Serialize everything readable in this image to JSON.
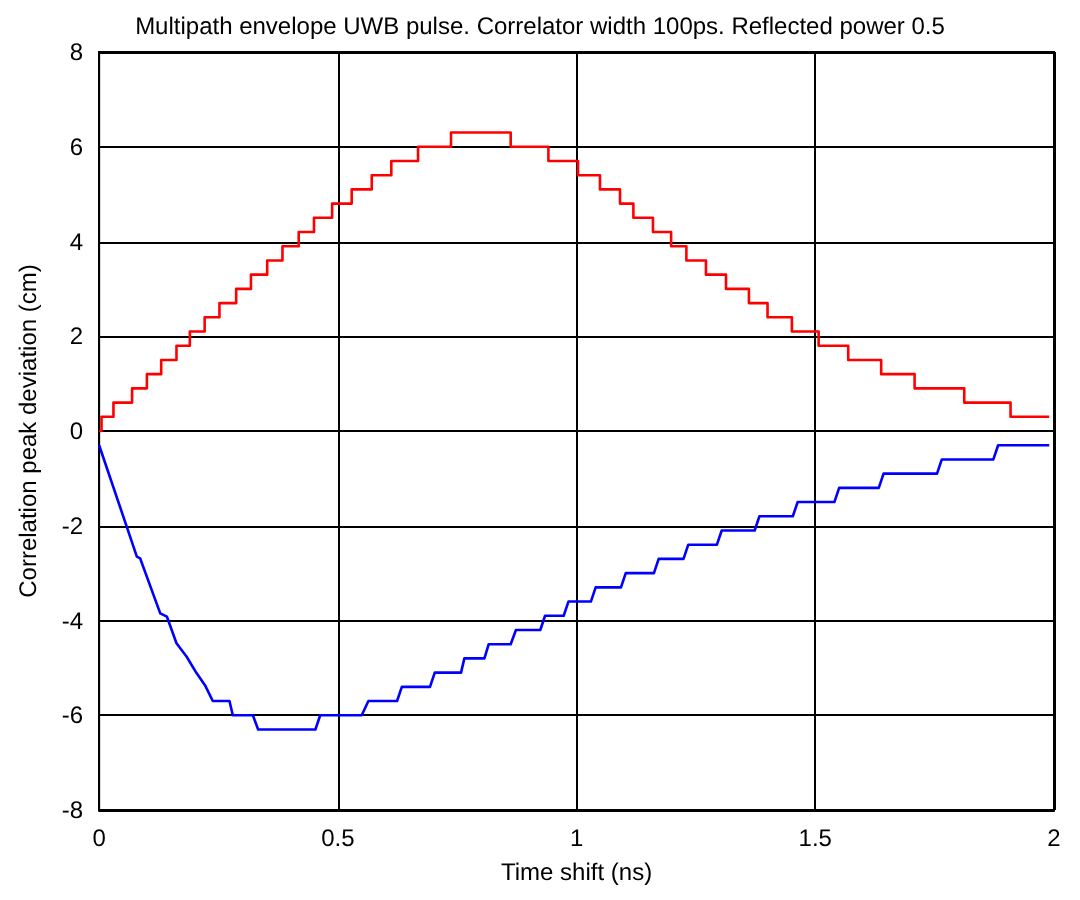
{
  "chart_data": {
    "type": "line",
    "title": "Multipath envelope UWB pulse. Correlator width 100ps. Reflected power 0.5",
    "xlabel": "Time shift (ns)",
    "ylabel": "Correlation peak deviation (cm)",
    "xlim": [
      0,
      2
    ],
    "xticks": [
      0,
      0.5,
      1,
      1.5,
      2
    ],
    "ylim": [
      -8,
      8
    ],
    "yticks": [
      -8,
      -6,
      -4,
      -2,
      0,
      2,
      4,
      6,
      8
    ],
    "grid": true,
    "series": [
      {
        "type": "step",
        "color": "#ff0000",
        "x": [
          0,
          0.005,
          0.03,
          0.069,
          0.1,
          0.13,
          0.162,
          0.19,
          0.221,
          0.252,
          0.287,
          0.318,
          0.352,
          0.384,
          0.418,
          0.45,
          0.488,
          0.529,
          0.571,
          0.612,
          0.668,
          0.737,
          0.862,
          0.941,
          1.003,
          1.049,
          1.091,
          1.119,
          1.16,
          1.198,
          1.23,
          1.271,
          1.313,
          1.361,
          1.4,
          1.451,
          1.507,
          1.569,
          1.638,
          1.708,
          1.812,
          1.909,
          1.99
        ],
        "values": [
          0,
          0.3,
          0.6,
          0.9,
          1.2,
          1.5,
          1.8,
          2.1,
          2.4,
          2.7,
          3.0,
          3.3,
          3.6,
          3.9,
          4.2,
          4.5,
          4.8,
          5.1,
          5.4,
          5.7,
          6.0,
          6.3,
          6.0,
          5.7,
          5.4,
          5.1,
          4.8,
          4.5,
          4.2,
          3.9,
          3.6,
          3.3,
          3.0,
          2.7,
          2.4,
          2.1,
          1.8,
          1.5,
          1.2,
          0.9,
          0.6,
          0.3,
          0.3
        ]
      },
      {
        "color": "#0000ff",
        "x": [
          0,
          0.079,
          0.086,
          0.128,
          0.142,
          0.162,
          0.183,
          0.204,
          0.222,
          0.238,
          0.273,
          0.28,
          0.322,
          0.333,
          0.453,
          0.463,
          0.55,
          0.564,
          0.624,
          0.634,
          0.693,
          0.703,
          0.758,
          0.765,
          0.807,
          0.816,
          0.862,
          0.873,
          0.924,
          0.934,
          0.973,
          0.983,
          1.03,
          1.04,
          1.093,
          1.103,
          1.162,
          1.172,
          1.224,
          1.234,
          1.294,
          1.304,
          1.373,
          1.383,
          1.453,
          1.463,
          1.54,
          1.55,
          1.633,
          1.643,
          1.755,
          1.765,
          1.873,
          1.883,
          1.99
        ],
        "values": [
          -0.3,
          -2.65,
          -2.69,
          -3.85,
          -3.92,
          -4.48,
          -4.76,
          -5.11,
          -5.37,
          -5.7,
          -5.7,
          -6.0,
          -6.0,
          -6.3,
          -6.3,
          -6.0,
          -6.0,
          -5.7,
          -5.7,
          -5.4,
          -5.4,
          -5.1,
          -5.1,
          -4.8,
          -4.8,
          -4.5,
          -4.5,
          -4.2,
          -4.2,
          -3.9,
          -3.9,
          -3.6,
          -3.6,
          -3.3,
          -3.3,
          -3.0,
          -3.0,
          -2.7,
          -2.7,
          -2.4,
          -2.4,
          -2.1,
          -2.1,
          -1.8,
          -1.8,
          -1.5,
          -1.5,
          -1.2,
          -1.2,
          -0.9,
          -0.9,
          -0.6,
          -0.6,
          -0.3,
          -0.3
        ]
      }
    ]
  }
}
